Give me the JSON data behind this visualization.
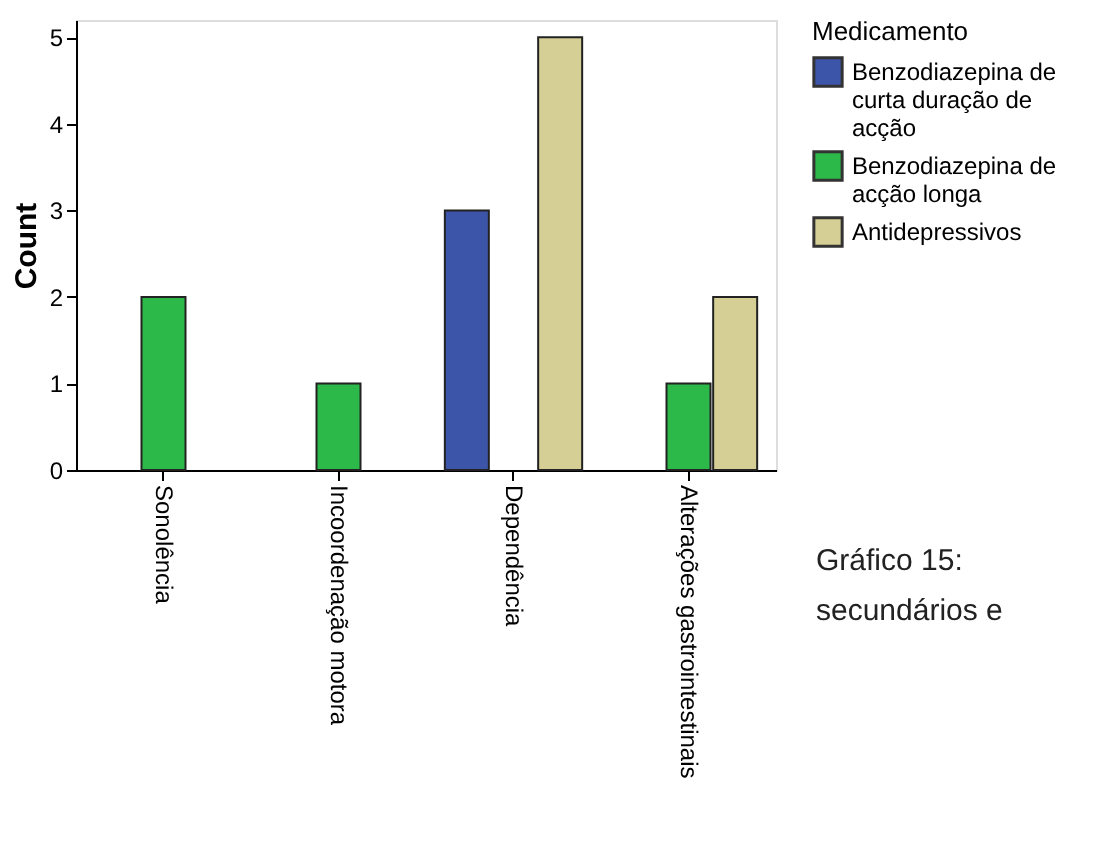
{
  "chart_data": {
    "type": "bar",
    "ylabel": "Count",
    "legend_title": "Medicamento",
    "legend": "right",
    "categories": [
      "Sonolência",
      "Incoordenação motora",
      "Dependência",
      "Alterações gastrointestinais"
    ],
    "series": [
      {
        "name": "Benzodiazepina de curta duração de acção",
        "color": "#3d55a8",
        "values": [
          null,
          null,
          3,
          null
        ]
      },
      {
        "name": "Benzodiazepina de acção longa",
        "color": "#2db84a",
        "values": [
          2,
          1,
          null,
          1
        ]
      },
      {
        "name": "Antidepressivos",
        "color": "#d5cf96",
        "values": [
          null,
          null,
          5,
          2
        ]
      }
    ],
    "ylim": [
      0,
      5.2
    ],
    "yticks": [
      0,
      1,
      2,
      3,
      4,
      5
    ],
    "grid": false,
    "annotations": [
      "Gráfico 15:",
      "secundários e"
    ]
  }
}
